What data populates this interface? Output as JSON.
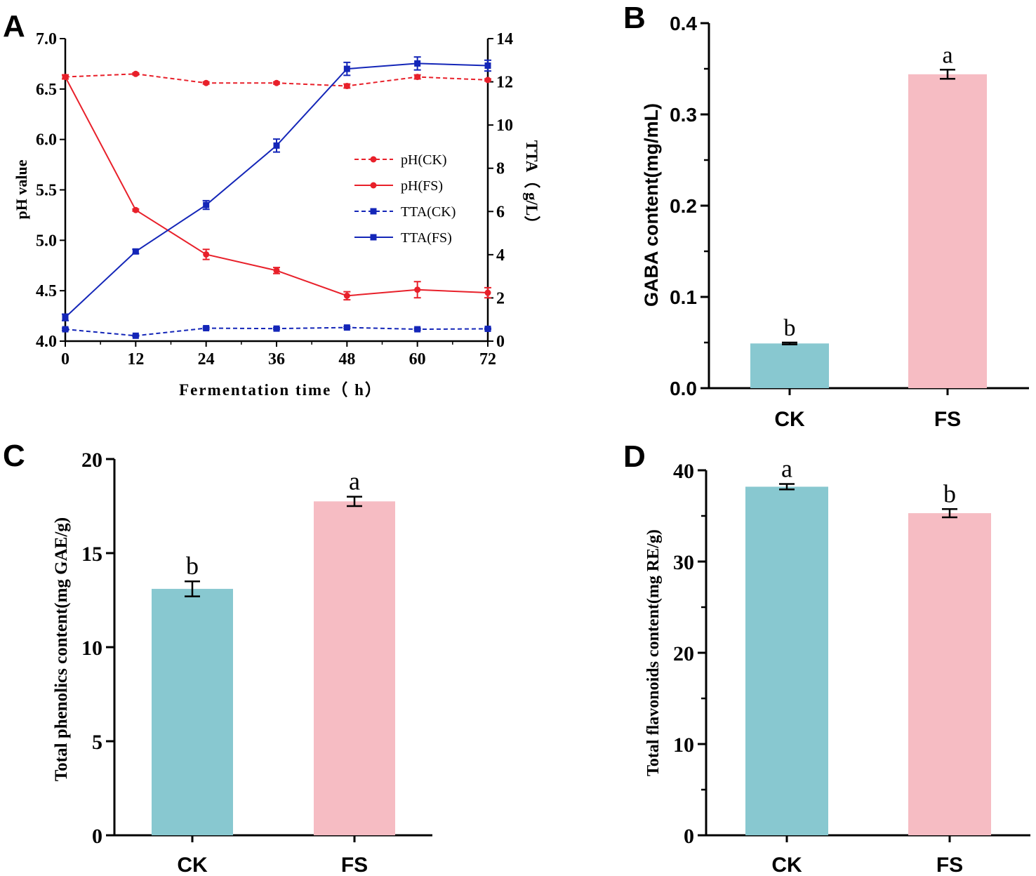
{
  "colors": {
    "red": "#e8202a",
    "blue": "#1426b8",
    "ck_bar": "#88c8d0",
    "fs_bar": "#f6bcc3",
    "axis": "#000000"
  },
  "chart_data": [
    {
      "id": "A",
      "panel_label": "A",
      "type": "line",
      "title": "",
      "xlabel": "Fermentation time（ h）",
      "ylabel": "pH value",
      "y2label": "TTA（ g/L）",
      "x": [
        0,
        12,
        24,
        36,
        48,
        60,
        72
      ],
      "xticks": [
        "0",
        "12",
        "24",
        "36",
        "48",
        "60",
        "72"
      ],
      "xlim": [
        0,
        72
      ],
      "ylim": [
        4.0,
        7.0
      ],
      "yticks": [
        "4.0",
        "4.5",
        "5.0",
        "5.5",
        "6.0",
        "6.5",
        "7.0"
      ],
      "y2lim": [
        0,
        14
      ],
      "y2ticks": [
        "0",
        "2",
        "4",
        "6",
        "8",
        "10",
        "12",
        "14"
      ],
      "legend_position": "center-right",
      "series": [
        {
          "name": "pH(CK)",
          "axis": "left",
          "style": "dashed",
          "marker": "circle",
          "color": "#e8202a",
          "values": [
            6.62,
            6.65,
            6.56,
            6.56,
            6.53,
            6.62,
            6.59
          ],
          "errors": [
            0.02,
            0.01,
            0.01,
            0.01,
            0.02,
            0.02,
            0.01
          ]
        },
        {
          "name": "pH(FS)",
          "axis": "left",
          "style": "solid",
          "marker": "circle",
          "color": "#e8202a",
          "values": [
            6.62,
            5.3,
            4.86,
            4.7,
            4.45,
            4.51,
            4.48
          ],
          "errors": [
            0.02,
            0.01,
            0.05,
            0.03,
            0.04,
            0.08,
            0.05
          ]
        },
        {
          "name": "TTA(CK)",
          "axis": "right",
          "style": "dashed",
          "marker": "square",
          "color": "#1426b8",
          "values": [
            0.55,
            0.25,
            0.6,
            0.58,
            0.63,
            0.55,
            0.57
          ],
          "errors": [
            0.05,
            0.03,
            0.04,
            0.04,
            0.04,
            0.04,
            0.03
          ]
        },
        {
          "name": "TTA(FS)",
          "axis": "right",
          "style": "solid",
          "marker": "square",
          "color": "#1426b8",
          "values": [
            1.1,
            4.15,
            6.3,
            9.05,
            12.6,
            12.85,
            12.75
          ],
          "errors": [
            0.15,
            0.1,
            0.2,
            0.3,
            0.3,
            0.3,
            0.25
          ]
        }
      ]
    },
    {
      "id": "B",
      "panel_label": "B",
      "type": "bar",
      "title": "",
      "xlabel": "",
      "ylabel": "GABA content(mg/mL)",
      "categories": [
        "CK",
        "FS"
      ],
      "values": [
        0.049,
        0.344
      ],
      "errors": [
        0.001,
        0.005
      ],
      "letters": [
        "b",
        "a"
      ],
      "ylim": [
        0.0,
        0.4
      ],
      "yticks": [
        "0.0",
        "0.1",
        "0.2",
        "0.3",
        "0.4"
      ],
      "minor_ticks": true
    },
    {
      "id": "C",
      "panel_label": "C",
      "type": "bar",
      "title": "",
      "xlabel": "",
      "ylabel": "Total phenolics content(mg GAE/g)",
      "categories": [
        "CK",
        "FS"
      ],
      "values": [
        13.1,
        17.75
      ],
      "errors": [
        0.4,
        0.25
      ],
      "letters": [
        "b",
        "a"
      ],
      "ylim": [
        0,
        20
      ],
      "yticks": [
        "0",
        "5",
        "10",
        "15",
        "20"
      ],
      "minor_ticks": false
    },
    {
      "id": "D",
      "panel_label": "D",
      "type": "bar",
      "title": "",
      "xlabel": "",
      "ylabel": "Total flavonoids content(mg RE/g)",
      "categories": [
        "CK",
        "FS"
      ],
      "values": [
        38.2,
        35.3
      ],
      "errors": [
        0.3,
        0.45
      ],
      "letters": [
        "a",
        "b"
      ],
      "ylim": [
        0,
        40
      ],
      "yticks": [
        "0",
        "10",
        "20",
        "30",
        "40"
      ],
      "minor_ticks": true
    }
  ]
}
